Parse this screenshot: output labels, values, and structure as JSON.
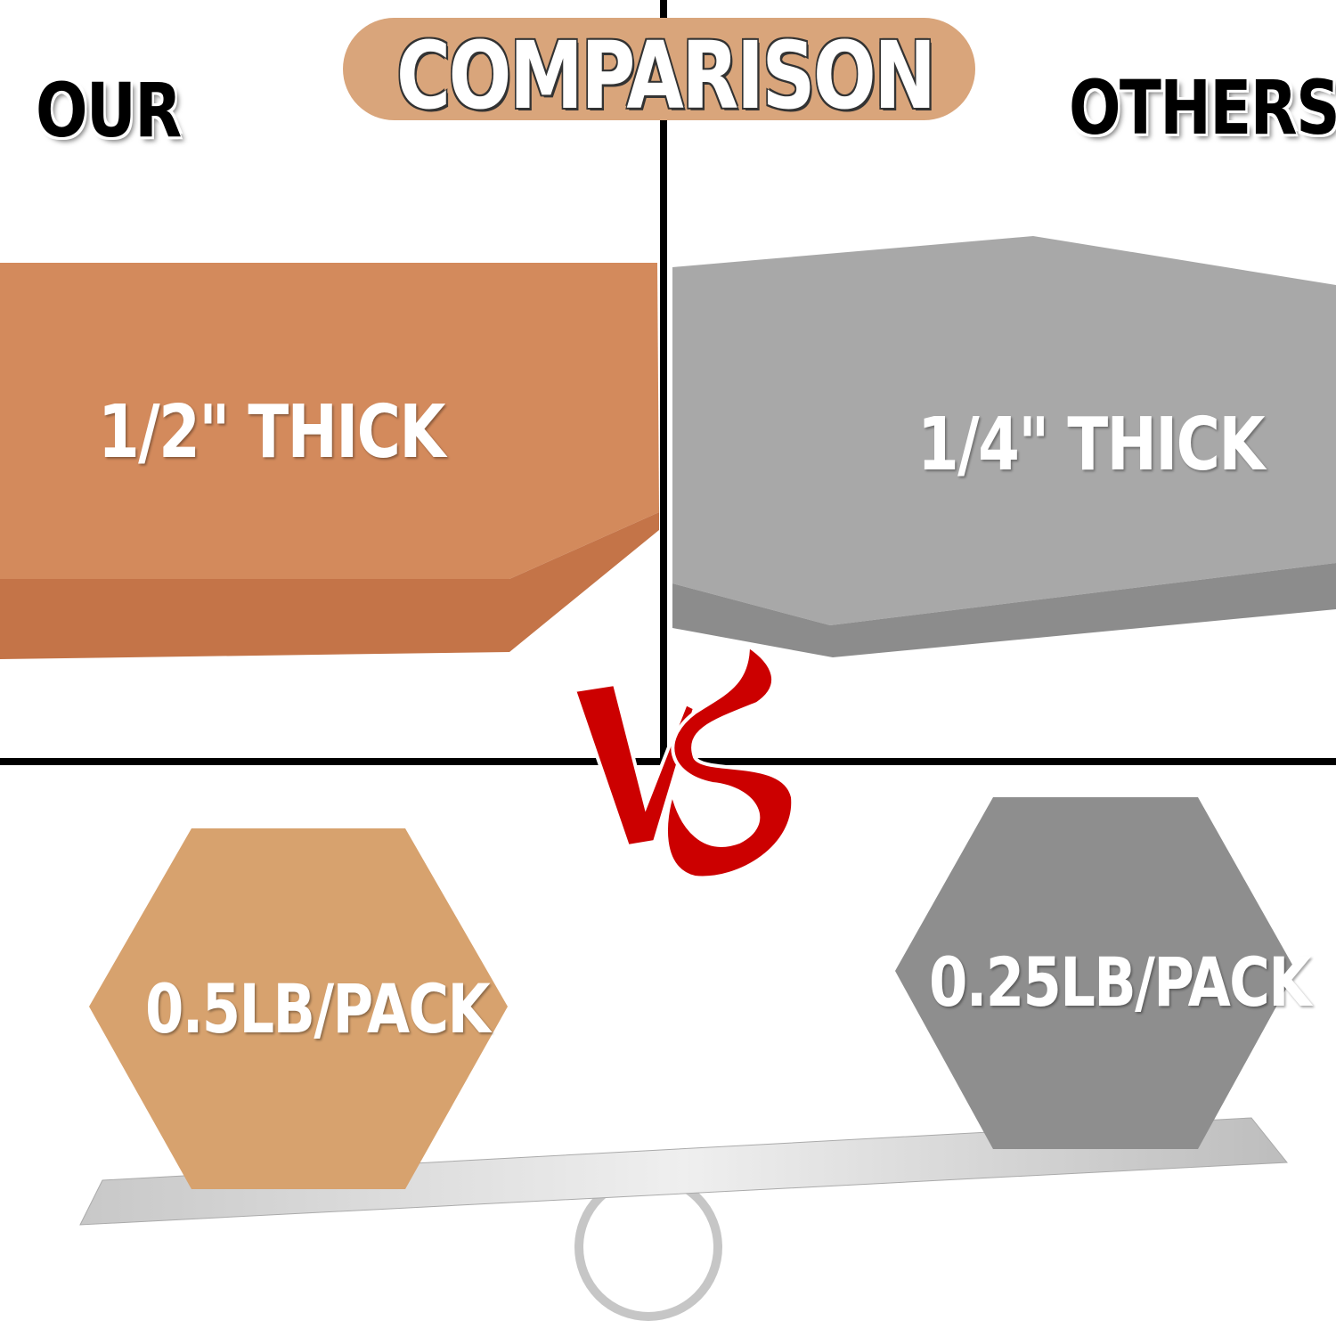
{
  "header": {
    "title": "COMPARISON",
    "left_label": "OUR",
    "right_label": "OTHERS"
  },
  "thickness": {
    "ours": "1/2\" THICK",
    "others": "1/4\" THICK"
  },
  "weight": {
    "ours": "0.5LB/PACK",
    "others": "0.25LB/PACK"
  },
  "vs_label": "VS",
  "colors": {
    "cork": "#d38a5c",
    "gray_cork": "#a6a6a6",
    "title_pill": "#d9a57b",
    "vs": "#cc0000"
  }
}
